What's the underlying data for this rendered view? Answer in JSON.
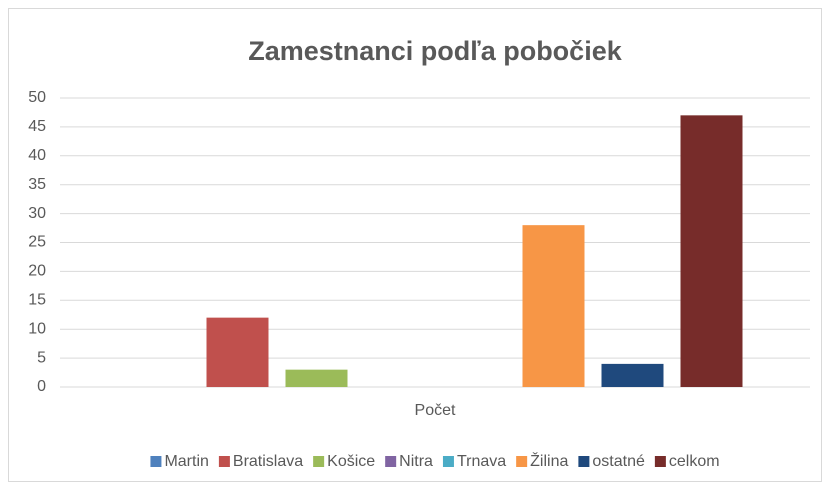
{
  "chart_data": {
    "type": "bar",
    "title": "Zamestnanci podľa pobočiek",
    "categories": [
      "Počet"
    ],
    "series": [
      {
        "name": "Martin",
        "color": "#4f81bd",
        "values": [
          0
        ]
      },
      {
        "name": "Bratislava",
        "color": "#c0504d",
        "values": [
          12
        ]
      },
      {
        "name": "Košice",
        "color": "#9bbb59",
        "values": [
          3
        ]
      },
      {
        "name": "Nitra",
        "color": "#8064a2",
        "values": [
          0
        ]
      },
      {
        "name": "Trnava",
        "color": "#4bacc6",
        "values": [
          0
        ]
      },
      {
        "name": "Žilina",
        "color": "#f79646",
        "values": [
          28
        ]
      },
      {
        "name": "ostatné",
        "color": "#1f497d",
        "values": [
          4
        ]
      },
      {
        "name": "celkom",
        "color": "#772c2a",
        "values": [
          47
        ]
      }
    ],
    "ylim": [
      0,
      50
    ],
    "yticks": [
      0,
      5,
      10,
      15,
      20,
      25,
      30,
      35,
      40,
      45,
      50
    ],
    "grid": true,
    "legend": "bottom"
  }
}
